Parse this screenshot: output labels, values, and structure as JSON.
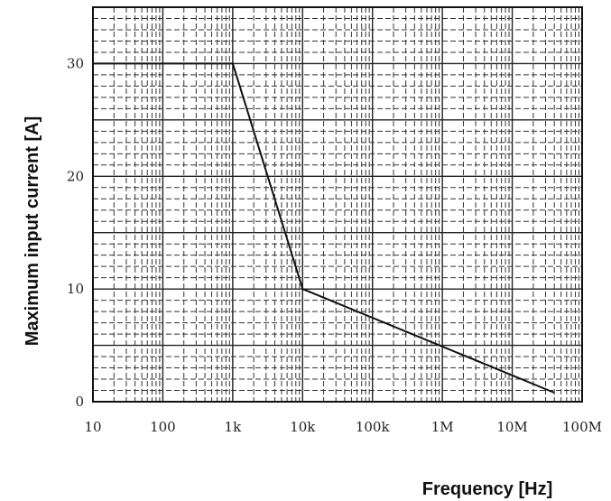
{
  "chart_data": {
    "type": "line",
    "title": "",
    "xlabel": "Frequency [Hz]",
    "ylabel": "Maximum input current [A]",
    "x_scale": "log",
    "xlim": [
      10,
      100000000
    ],
    "ylim": [
      0,
      35
    ],
    "grid": true,
    "x_ticks": [
      {
        "value": 10,
        "label": "10"
      },
      {
        "value": 100,
        "label": "100"
      },
      {
        "value": 1000,
        "label": "1k"
      },
      {
        "value": 10000,
        "label": "10k"
      },
      {
        "value": 100000,
        "label": "100k"
      },
      {
        "value": 1000000,
        "label": "1M"
      },
      {
        "value": 10000000,
        "label": "10M"
      },
      {
        "value": 100000000,
        "label": "100M"
      }
    ],
    "y_ticks": [
      {
        "value": 0,
        "label": "0"
      },
      {
        "value": 10,
        "label": "10"
      },
      {
        "value": 20,
        "label": "20"
      },
      {
        "value": 30,
        "label": "30"
      }
    ],
    "series": [
      {
        "x": [
          10,
          1000,
          10000,
          40000000
        ],
        "y": [
          30,
          30,
          10,
          0.8
        ]
      }
    ]
  }
}
